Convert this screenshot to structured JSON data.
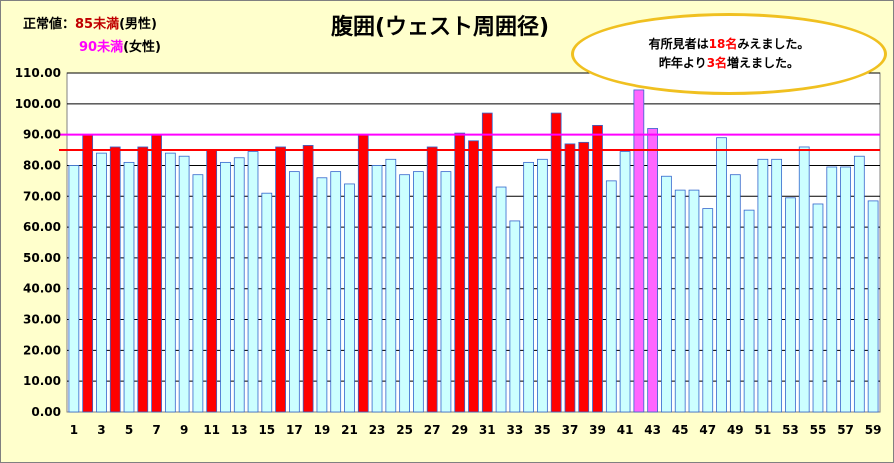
{
  "title": "腹囲(ウェスト周囲径)",
  "legend": {
    "normal_label": "正常値：",
    "male_value": "85未満",
    "male_suffix": "(男性)",
    "female_value": "90未満",
    "female_suffix": "(女性)",
    "male_color": "#c00000",
    "female_color": "#ff00ff"
  },
  "callout": {
    "line1_a": "有所見者は",
    "line1_num": "18名",
    "line1_b": "みえました。",
    "line2_a": "昨年より",
    "line2_num": "3名",
    "line2_b": "増えました。"
  },
  "chart_data": {
    "type": "bar",
    "x": [
      1,
      2,
      3,
      4,
      5,
      6,
      7,
      8,
      9,
      10,
      11,
      12,
      13,
      14,
      15,
      16,
      17,
      18,
      19,
      20,
      21,
      22,
      23,
      24,
      25,
      26,
      27,
      28,
      29,
      30,
      31,
      32,
      33,
      34,
      35,
      36,
      37,
      38,
      39,
      40,
      41,
      42,
      43,
      44,
      45,
      46,
      47,
      48,
      49,
      50,
      51,
      52,
      53,
      54,
      55,
      56,
      57,
      58,
      59
    ],
    "values": [
      80,
      90,
      84,
      86,
      81,
      86,
      90,
      84,
      83,
      77,
      85,
      81,
      82.5,
      84.5,
      71,
      86,
      78,
      86.5,
      76,
      78,
      74,
      90,
      80,
      82,
      77,
      78,
      86,
      78,
      90.5,
      88,
      97,
      73,
      62,
      81,
      82,
      97,
      87,
      87.5,
      93,
      75,
      84.5,
      104.5,
      92,
      76.5,
      72,
      72,
      66,
      89,
      77,
      65.5,
      82,
      82,
      69.5,
      86,
      67.5,
      79.5,
      79.5,
      83,
      68.5
    ],
    "status": [
      "n",
      "m",
      "n",
      "m",
      "n",
      "m",
      "m",
      "n",
      "n",
      "n",
      "m",
      "n",
      "n",
      "n",
      "n",
      "m",
      "n",
      "m",
      "n",
      "n",
      "n",
      "m",
      "n",
      "n",
      "n",
      "n",
      "m",
      "n",
      "m",
      "m",
      "m",
      "n",
      "n",
      "n",
      "n",
      "m",
      "m",
      "m",
      "m",
      "n",
      "n",
      "f",
      "f",
      "n",
      "n",
      "n",
      "n",
      "n",
      "n",
      "n",
      "n",
      "n",
      "n",
      "n",
      "n",
      "n",
      "n",
      "n",
      "n"
    ],
    "status_colors": {
      "n": "#ccffff",
      "m": "#ff0000",
      "f": "#ff66ff"
    },
    "reference_lines": [
      {
        "value": 85,
        "color": "#ff0000"
      },
      {
        "value": 90,
        "color": "#ff00ff"
      }
    ],
    "ylim": [
      0,
      110
    ],
    "y_ticks": [
      "0.00",
      "10.00",
      "20.00",
      "30.00",
      "40.00",
      "50.00",
      "60.00",
      "70.00",
      "80.00",
      "90.00",
      "100.00",
      "110.00"
    ],
    "x_tick_labels": [
      1,
      3,
      5,
      7,
      9,
      11,
      13,
      15,
      17,
      19,
      21,
      23,
      25,
      27,
      29,
      31,
      33,
      35,
      37,
      39,
      41,
      43,
      45,
      47,
      49,
      51,
      53,
      55,
      57,
      59
    ],
    "grid": true
  }
}
